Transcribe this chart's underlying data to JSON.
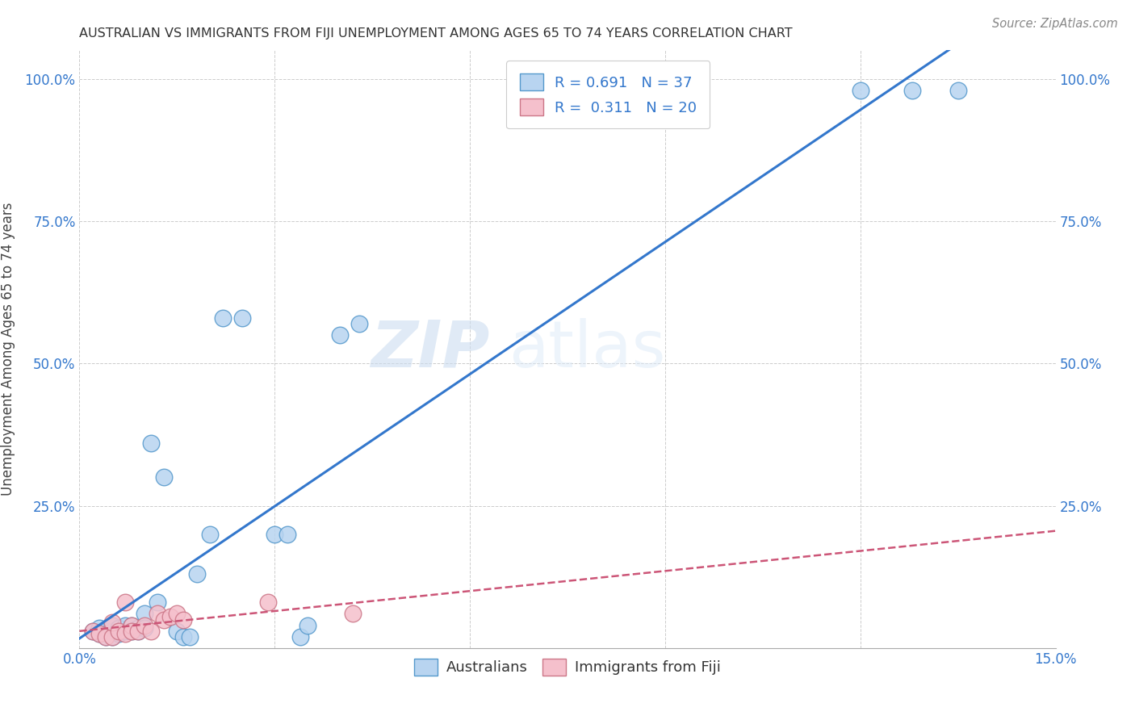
{
  "title": "AUSTRALIAN VS IMMIGRANTS FROM FIJI UNEMPLOYMENT AMONG AGES 65 TO 74 YEARS CORRELATION CHART",
  "source": "Source: ZipAtlas.com",
  "ylabel": "Unemployment Among Ages 65 to 74 years",
  "xlim": [
    0.0,
    0.15
  ],
  "ylim": [
    0.0,
    1.05
  ],
  "x_ticks": [
    0.0,
    0.03,
    0.06,
    0.09,
    0.12,
    0.15
  ],
  "x_tick_labels": [
    "0.0%",
    "",
    "",
    "",
    "",
    "15.0%"
  ],
  "y_ticks": [
    0.0,
    0.25,
    0.5,
    0.75,
    1.0
  ],
  "y_tick_labels_left": [
    "",
    "25.0%",
    "50.0%",
    "75.0%",
    "100.0%"
  ],
  "y_tick_labels_right": [
    "",
    "25.0%",
    "50.0%",
    "75.0%",
    "100.0%"
  ],
  "australians_x": [
    0.002,
    0.003,
    0.003,
    0.004,
    0.004,
    0.005,
    0.005,
    0.005,
    0.006,
    0.006,
    0.007,
    0.007,
    0.008,
    0.008,
    0.009,
    0.009,
    0.01,
    0.01,
    0.011,
    0.012,
    0.013,
    0.015,
    0.016,
    0.017,
    0.018,
    0.02,
    0.022,
    0.025,
    0.03,
    0.032,
    0.034,
    0.035,
    0.04,
    0.043,
    0.12,
    0.128,
    0.135
  ],
  "australians_y": [
    0.03,
    0.025,
    0.035,
    0.02,
    0.03,
    0.03,
    0.02,
    0.04,
    0.025,
    0.035,
    0.03,
    0.04,
    0.04,
    0.03,
    0.035,
    0.03,
    0.06,
    0.035,
    0.36,
    0.08,
    0.3,
    0.03,
    0.02,
    0.02,
    0.13,
    0.2,
    0.58,
    0.58,
    0.2,
    0.2,
    0.02,
    0.04,
    0.55,
    0.57,
    0.98,
    0.98,
    0.98
  ],
  "fiji_x": [
    0.002,
    0.003,
    0.004,
    0.005,
    0.005,
    0.006,
    0.007,
    0.007,
    0.008,
    0.008,
    0.009,
    0.01,
    0.011,
    0.012,
    0.013,
    0.014,
    0.015,
    0.016,
    0.029,
    0.042
  ],
  "fiji_y": [
    0.03,
    0.025,
    0.02,
    0.02,
    0.045,
    0.03,
    0.025,
    0.08,
    0.04,
    0.03,
    0.03,
    0.04,
    0.03,
    0.06,
    0.05,
    0.055,
    0.06,
    0.05,
    0.08,
    0.06
  ],
  "aus_color": "#b8d4f0",
  "aus_edge_color": "#5599cc",
  "fiji_color": "#f5c0cc",
  "fiji_edge_color": "#cc7788",
  "aus_line_color": "#3377cc",
  "fiji_line_color": "#cc5577",
  "aus_r": 0.691,
  "aus_n": 37,
  "fiji_r": 0.311,
  "fiji_n": 20,
  "watermark_zip": "ZIP",
  "watermark_atlas": "atlas",
  "legend_r_aus": "R = 0.691",
  "legend_n_aus": "N = 37",
  "legend_r_fiji": "R =  0.311",
  "legend_n_fiji": "N = 20",
  "legend_label_aus": "Australians",
  "legend_label_fiji": "Immigrants from Fiji",
  "scatter_size": 220,
  "title_fontsize": 11.5,
  "tick_fontsize": 12,
  "legend_fontsize": 13
}
